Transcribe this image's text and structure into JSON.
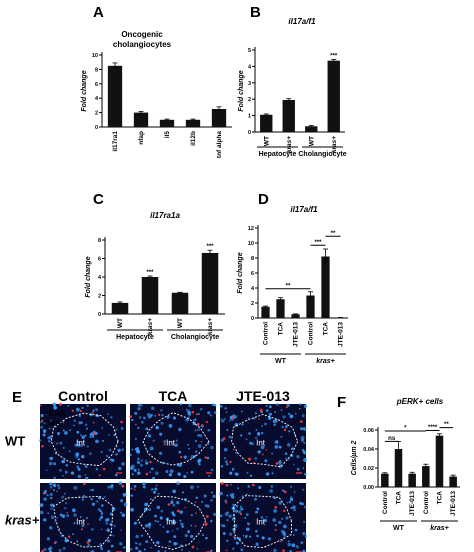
{
  "letters": {
    "A": "A",
    "B": "B",
    "C": "C",
    "D": "D",
    "E": "E",
    "F": "F"
  },
  "chart_data": [
    {
      "id": "A",
      "type": "bar",
      "title": "Oncogenic",
      "subtitle": "cholangiocytes",
      "ylabel": "Fold change",
      "categories": [
        "il17ra1",
        "nfap",
        "il5",
        "il12b",
        "tnf alpha"
      ],
      "values": [
        8.5,
        2.0,
        1.0,
        1.0,
        2.5
      ],
      "errors": [
        0.4,
        0.15,
        0.1,
        0.1,
        0.3
      ],
      "ylim": [
        0,
        10
      ],
      "yticks": [
        "0",
        "2",
        "4",
        "6",
        "8",
        "10"
      ]
    },
    {
      "id": "B",
      "type": "bar",
      "title": "il17a/f1",
      "ylabel": "Fold change",
      "categories": [
        "WT",
        "kras+",
        "WT",
        "kras+"
      ],
      "values": [
        1.05,
        1.95,
        0.35,
        4.35
      ],
      "errors": [
        0.05,
        0.08,
        0.05,
        0.08
      ],
      "ylim": [
        0,
        5
      ],
      "yticks": [
        "0",
        "1",
        "2",
        "3",
        "4",
        "5"
      ],
      "groups": [
        "Hepatocyte",
        "Cholangiocyte"
      ],
      "annotations": [
        "***"
      ]
    },
    {
      "id": "C",
      "type": "bar",
      "title": "il17ra1a",
      "ylabel": "Fold change",
      "categories": [
        "WT",
        "kras+",
        "WT",
        "kras+"
      ],
      "values": [
        1.2,
        4.0,
        2.3,
        6.6
      ],
      "errors": [
        0.1,
        0.1,
        0.05,
        0.3
      ],
      "ylim": [
        0,
        8
      ],
      "yticks": [
        "0",
        "2",
        "4",
        "6",
        "8"
      ],
      "groups": [
        "Hepatocyte",
        "Cholangiocyte"
      ],
      "annotations": [
        "***",
        "***"
      ]
    },
    {
      "id": "D",
      "type": "bar",
      "title": "il17a/f1",
      "ylabel": "Fold change",
      "categories": [
        "Control",
        "TCA",
        "JTE-013",
        "Control",
        "TCA",
        "JTE-013"
      ],
      "values": [
        1.5,
        2.5,
        0.5,
        3.0,
        8.2,
        0.05
      ],
      "errors": [
        0.1,
        0.2,
        0.05,
        0.5,
        1.0,
        0.02
      ],
      "ylim": [
        0,
        12
      ],
      "yticks": [
        "0",
        "2",
        "4",
        "6",
        "8",
        "10",
        "12"
      ],
      "groups": [
        "WT",
        "kras+"
      ],
      "annotations": [
        "**",
        "***",
        "**"
      ]
    },
    {
      "id": "F",
      "type": "bar",
      "title": "pERK+ cells",
      "ylabel": "Cells/µm 2",
      "categories": [
        "Control",
        "TCA",
        "JTE-013",
        "Control",
        "TCA",
        "JTE-013"
      ],
      "values": [
        0.014,
        0.04,
        0.014,
        0.022,
        0.054,
        0.011
      ],
      "errors": [
        0.001,
        0.008,
        0.0015,
        0.002,
        0.002,
        0.0015
      ],
      "ylim": [
        0,
        0.06
      ],
      "yticks": [
        "0.00",
        "0.02",
        "0.04",
        "0.06"
      ],
      "groups": [
        "WT",
        "kras+"
      ],
      "annotations": [
        "ns",
        "*",
        "****",
        "**"
      ]
    }
  ],
  "micro": {
    "columns": [
      "Control",
      "TCA",
      "JTE-013"
    ],
    "rows": [
      "WT",
      "kras+"
    ],
    "stains": [
      "pERK",
      "DAPI"
    ],
    "stain_colors": [
      "#ff3b3b",
      "#3aa0ff"
    ],
    "region": "Int"
  }
}
